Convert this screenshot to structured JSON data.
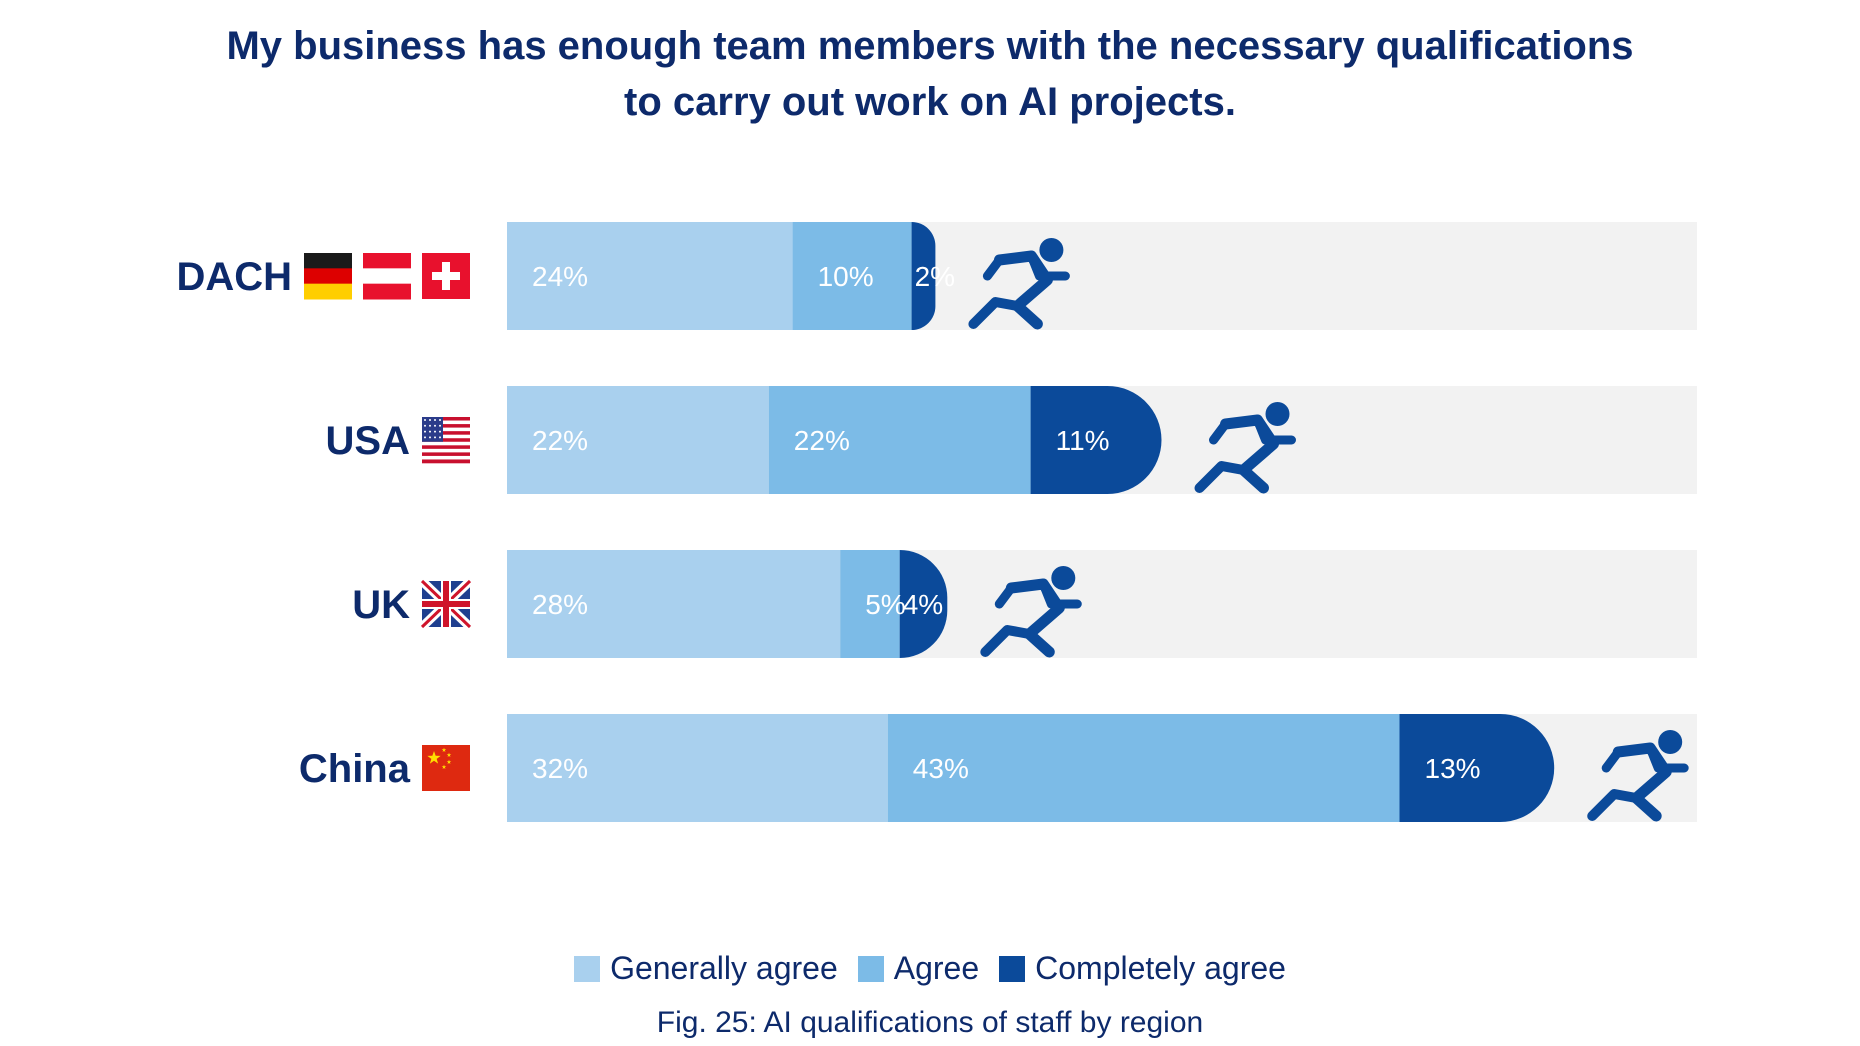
{
  "chart_data": {
    "type": "bar",
    "orientation": "horizontal",
    "stacked": true,
    "title_lines": [
      "My business has enough team members with the necessary qualifications",
      "to carry out work on AI projects."
    ],
    "caption": "Fig. 25: AI qualifications of staff by region",
    "categories": [
      "DACH",
      "USA",
      "UK",
      "China"
    ],
    "flags": [
      "germany-austria-switzerland-flags",
      "usa-flag",
      "uk-flag",
      "china-flag"
    ],
    "series": [
      {
        "name": "Generally agree",
        "values": [
          24,
          22,
          28,
          32
        ],
        "labels": [
          "24%",
          "22%",
          "28%",
          "32%"
        ],
        "color": "#a9d0ee"
      },
      {
        "name": "Agree",
        "values": [
          10,
          22,
          5,
          43
        ],
        "labels": [
          "10%",
          "22%",
          "5%",
          "43%"
        ],
        "color": "#7cbbe7"
      },
      {
        "name": "Completely agree",
        "values": [
          2,
          11,
          4,
          13
        ],
        "labels": [
          "2%",
          "11%",
          "4%",
          "13%"
        ],
        "color": "#0b4a9a"
      }
    ],
    "xlim": [
      0,
      100
    ],
    "legend_position": "bottom",
    "grid": false,
    "track_color": "#f2f2f2",
    "text_color": "#0d2a6b"
  }
}
